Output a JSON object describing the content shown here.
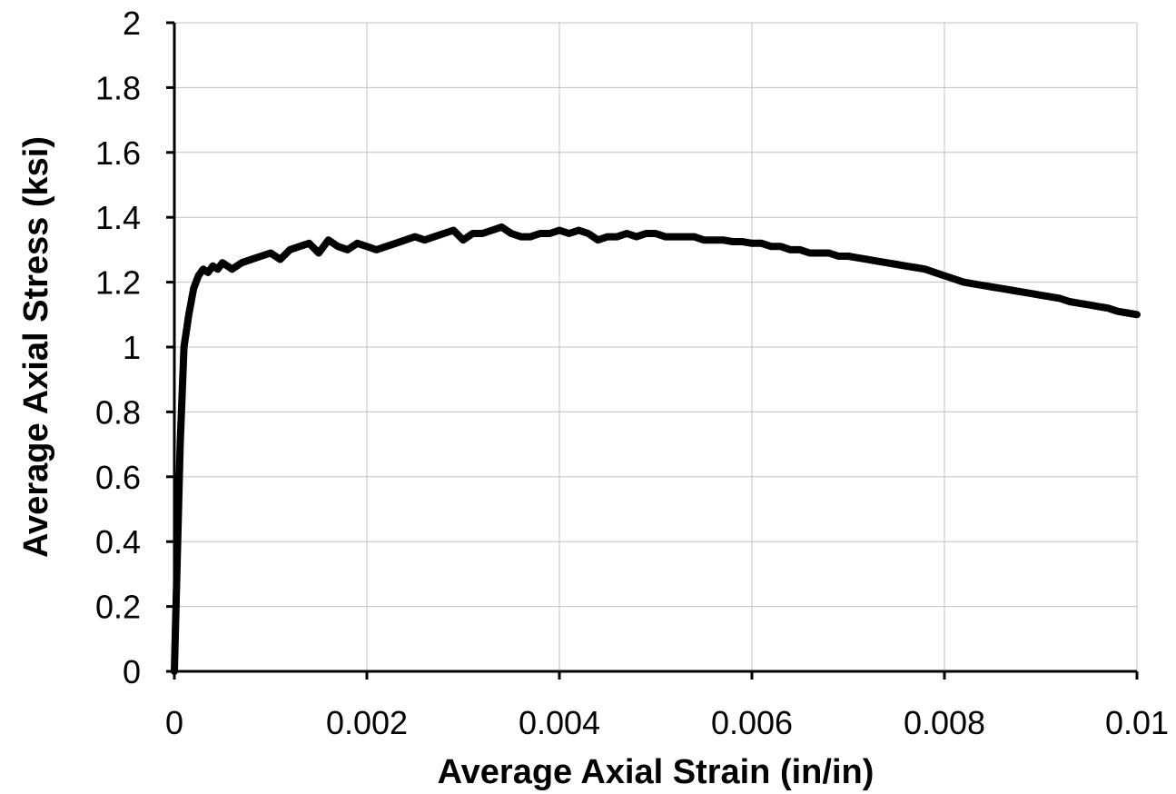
{
  "chart_data": {
    "type": "line",
    "title": "",
    "xlabel": "Average Axial Strain (in/in)",
    "ylabel": "Average Axial Stress (ksi)",
    "xlim": [
      0,
      0.01
    ],
    "ylim": [
      0,
      2
    ],
    "x_ticks": [
      0,
      0.002,
      0.004,
      0.006,
      0.008,
      0.01
    ],
    "x_tick_labels": [
      "0",
      "0.002",
      "0.004",
      "0.006",
      "0.008",
      "0.01"
    ],
    "y_ticks": [
      0,
      0.2,
      0.4,
      0.6,
      0.8,
      1,
      1.2,
      1.4,
      1.6,
      1.8,
      2
    ],
    "y_tick_labels": [
      "0",
      "0.2",
      "0.4",
      "0.6",
      "0.8",
      "1",
      "1.2",
      "1.4",
      "1.6",
      "1.8",
      "2"
    ],
    "grid": true,
    "legend": "none",
    "series": [
      {
        "color": "#000000",
        "x": [
          0,
          3e-05,
          6e-05,
          0.0001,
          0.00015,
          0.0002,
          0.00025,
          0.0003,
          0.00035,
          0.0004,
          0.00045,
          0.0005,
          0.0006,
          0.0007,
          0.0008,
          0.0009,
          0.001,
          0.0011,
          0.0012,
          0.0013,
          0.0014,
          0.0015,
          0.0016,
          0.0017,
          0.0018,
          0.0019,
          0.002,
          0.0021,
          0.0022,
          0.0023,
          0.0024,
          0.0025,
          0.0026,
          0.0027,
          0.0028,
          0.0029,
          0.003,
          0.0031,
          0.0032,
          0.0033,
          0.0034,
          0.0035,
          0.0036,
          0.0037,
          0.0038,
          0.0039,
          0.004,
          0.0041,
          0.0042,
          0.0043,
          0.0044,
          0.0045,
          0.0046,
          0.0047,
          0.0048,
          0.0049,
          0.005,
          0.0051,
          0.0052,
          0.0053,
          0.0054,
          0.0055,
          0.0056,
          0.0057,
          0.0058,
          0.0059,
          0.006,
          0.0061,
          0.0062,
          0.0063,
          0.0064,
          0.0065,
          0.0066,
          0.0067,
          0.0068,
          0.0069,
          0.007,
          0.0071,
          0.0072,
          0.0073,
          0.0074,
          0.0075,
          0.0076,
          0.0077,
          0.0078,
          0.0079,
          0.008,
          0.0081,
          0.0082,
          0.0083,
          0.0084,
          0.0085,
          0.0086,
          0.0087,
          0.0088,
          0.0089,
          0.009,
          0.0091,
          0.0092,
          0.0093,
          0.0094,
          0.0095,
          0.0096,
          0.0097,
          0.0098,
          0.0099,
          0.01
        ],
        "y": [
          0,
          0.35,
          0.7,
          1.0,
          1.1,
          1.18,
          1.22,
          1.24,
          1.23,
          1.25,
          1.24,
          1.26,
          1.24,
          1.26,
          1.27,
          1.28,
          1.29,
          1.27,
          1.3,
          1.31,
          1.32,
          1.29,
          1.33,
          1.31,
          1.3,
          1.32,
          1.31,
          1.3,
          1.31,
          1.32,
          1.33,
          1.34,
          1.33,
          1.34,
          1.35,
          1.36,
          1.33,
          1.35,
          1.35,
          1.36,
          1.37,
          1.35,
          1.34,
          1.34,
          1.35,
          1.35,
          1.36,
          1.35,
          1.36,
          1.35,
          1.33,
          1.34,
          1.34,
          1.35,
          1.34,
          1.35,
          1.35,
          1.34,
          1.34,
          1.34,
          1.34,
          1.33,
          1.33,
          1.33,
          1.325,
          1.325,
          1.32,
          1.32,
          1.31,
          1.31,
          1.3,
          1.3,
          1.29,
          1.29,
          1.29,
          1.28,
          1.28,
          1.275,
          1.27,
          1.265,
          1.26,
          1.255,
          1.25,
          1.245,
          1.24,
          1.23,
          1.22,
          1.21,
          1.2,
          1.195,
          1.19,
          1.185,
          1.18,
          1.175,
          1.17,
          1.165,
          1.16,
          1.155,
          1.15,
          1.14,
          1.135,
          1.13,
          1.125,
          1.12,
          1.11,
          1.105,
          1.1
        ]
      }
    ]
  }
}
